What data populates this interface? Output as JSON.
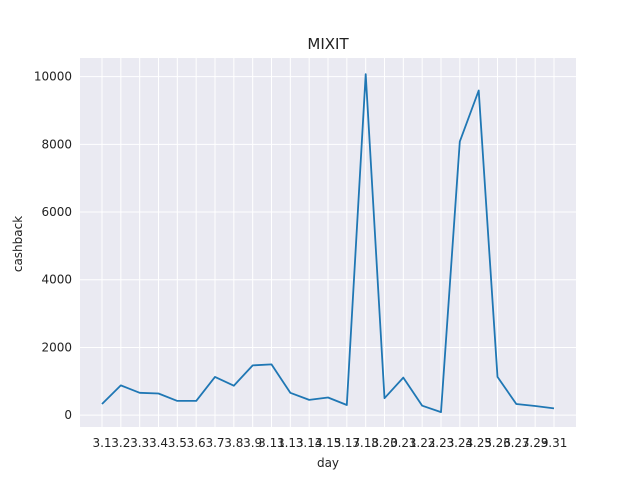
{
  "chart_data": {
    "type": "line",
    "title": "MIXIT",
    "xlabel": "day",
    "ylabel": "cashback",
    "categories": [
      "3.1",
      "3.2",
      "3.3",
      "3.4",
      "3.5",
      "3.6",
      "3.7",
      "3.8",
      "3.9",
      "3.11",
      "3.13",
      "3.14",
      "3.15",
      "3.17",
      "3.18",
      "3.20",
      "3.21",
      "3.22",
      "3.23",
      "3.24",
      "3.25",
      "3.26",
      "3.27",
      "3.29",
      "3.31"
    ],
    "series": [
      {
        "name": "cashback",
        "color": "#1f77b4",
        "values": [
          330,
          880,
          660,
          640,
          420,
          420,
          1130,
          870,
          1470,
          1500,
          660,
          450,
          520,
          300,
          10070,
          500,
          1110,
          280,
          90,
          8080,
          9590,
          1130,
          330,
          270,
          200
        ]
      }
    ],
    "ylim": [
      -350,
      10550
    ],
    "yticks": [
      0,
      2000,
      4000,
      6000,
      8000,
      10000
    ],
    "grid": true,
    "background": "#eaeaf2",
    "grid_color": "#ffffff"
  }
}
